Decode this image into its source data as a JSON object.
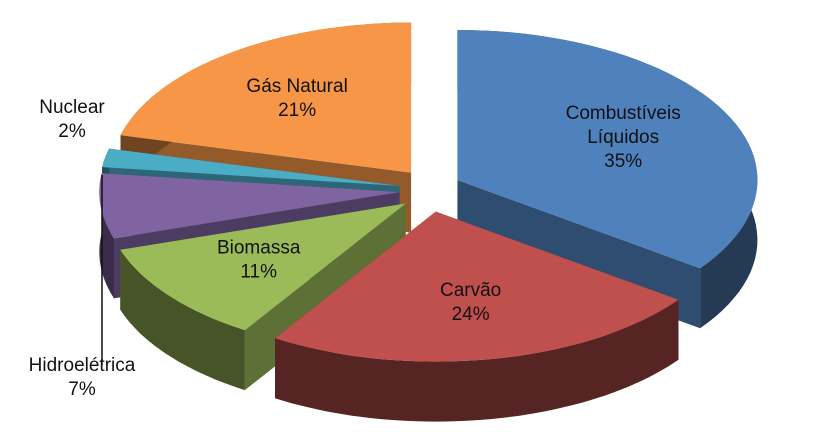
{
  "chart_data": {
    "type": "pie",
    "categories": [
      "Combustíveis Líquidos",
      "Carvão",
      "Biomassa",
      "Hidroelétrica",
      "Nuclear",
      "Gás Natural"
    ],
    "values": [
      35,
      24,
      11,
      7,
      2,
      21
    ],
    "value_labels": [
      "35%",
      "24%",
      "11%",
      "7%",
      "2%",
      "21%"
    ],
    "colors": [
      "#4f81bd",
      "#c0504d",
      "#9bbb59",
      "#8064a2",
      "#4bacc6",
      "#f79646"
    ]
  }
}
